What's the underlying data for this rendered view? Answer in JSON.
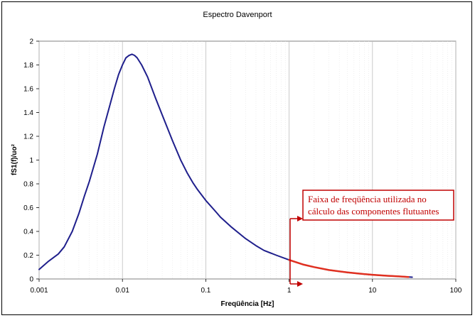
{
  "chart_data": {
    "type": "line",
    "title": "Espectro Davenport",
    "xlabel": "Freqüência [Hz]",
    "ylabel": "fS1(f)/uo²",
    "xscale": "log",
    "xlim": [
      0.001,
      100
    ],
    "ylim": [
      0,
      2
    ],
    "x_ticks": [
      0.001,
      0.01,
      0.1,
      1,
      10,
      100
    ],
    "x_tick_labels": [
      "0.001",
      "0.01",
      "0.1",
      "1",
      "10",
      "100"
    ],
    "y_ticks": [
      0,
      0.2,
      0.4,
      0.6,
      0.8,
      1,
      1.2,
      1.4,
      1.6,
      1.8,
      2
    ],
    "y_tick_labels": [
      "0",
      "0.2",
      "0.4",
      "0.6",
      "0.8",
      "1",
      "1.2",
      "1.4",
      "1.6",
      "1.8",
      "2"
    ],
    "grid": true,
    "series": [
      {
        "color": "#1f1f8c",
        "x": [
          0.001,
          0.0013,
          0.0017,
          0.002,
          0.0025,
          0.003,
          0.0035,
          0.004,
          0.005,
          0.006,
          0.007,
          0.008,
          0.009,
          0.01,
          0.011,
          0.012,
          0.013,
          0.014,
          0.015,
          0.017,
          0.02,
          0.025,
          0.03,
          0.04,
          0.05,
          0.06,
          0.07,
          0.08,
          0.1,
          0.13,
          0.15,
          0.2,
          0.3,
          0.4,
          0.5,
          0.7,
          1,
          1.5,
          2,
          3,
          5,
          7,
          10,
          15,
          20,
          30
        ],
        "y": [
          0.08,
          0.15,
          0.21,
          0.27,
          0.4,
          0.55,
          0.7,
          0.82,
          1.05,
          1.28,
          1.45,
          1.6,
          1.72,
          1.8,
          1.86,
          1.88,
          1.89,
          1.88,
          1.86,
          1.8,
          1.7,
          1.52,
          1.38,
          1.16,
          1.0,
          0.89,
          0.81,
          0.75,
          0.66,
          0.57,
          0.52,
          0.44,
          0.34,
          0.28,
          0.24,
          0.2,
          0.16,
          0.12,
          0.1,
          0.075,
          0.055,
          0.045,
          0.035,
          0.027,
          0.022,
          0.015
        ]
      },
      {
        "color": "#e03020",
        "x": [
          1,
          1.5,
          2,
          3,
          5,
          7,
          10,
          15,
          20,
          27
        ],
        "y": [
          0.16,
          0.12,
          0.1,
          0.075,
          0.055,
          0.045,
          0.035,
          0.027,
          0.022,
          0.017
        ]
      }
    ],
    "annotation": {
      "text_lines": [
        "Faixa de freqüência utilizada no",
        "cálculo das componentes flutuantes"
      ],
      "color": "#c00000",
      "x": 1
    }
  }
}
